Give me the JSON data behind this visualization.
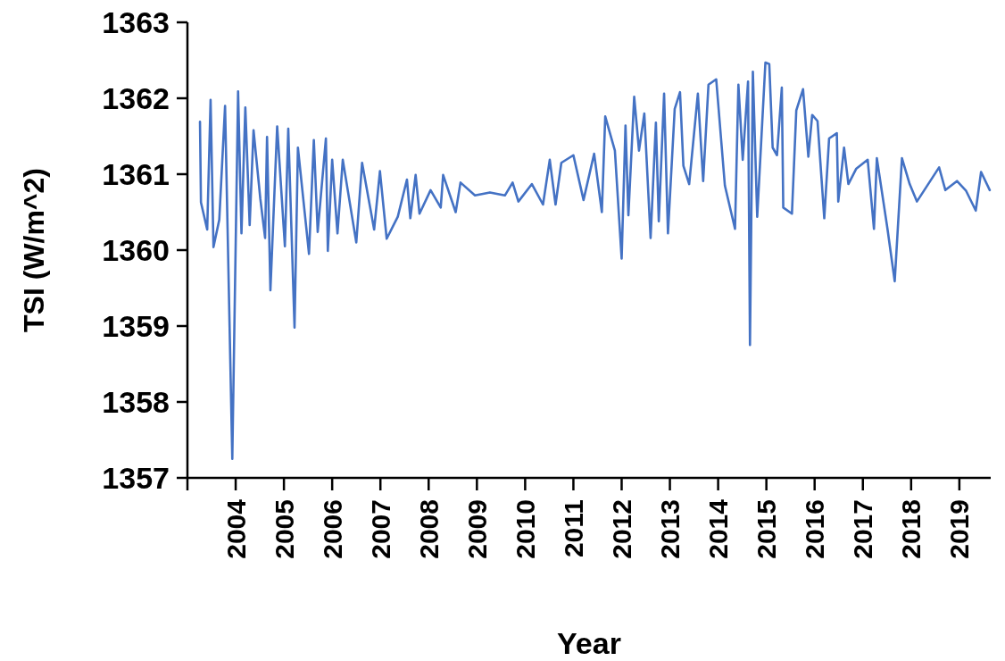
{
  "chart_data": {
    "type": "line",
    "xlabel": "Year",
    "ylabel": "TSI (W/m^2)",
    "xlim": [
      2003,
      2019.65
    ],
    "ylim": [
      1357,
      1363
    ],
    "xticks": [
      {
        "value": 2003,
        "label": null
      },
      2004,
      2005,
      2006,
      2007,
      2008,
      2009,
      2010,
      2011,
      2012,
      2013,
      2014,
      2015,
      2016,
      2017,
      2018,
      2019
    ],
    "yticks": [
      1357,
      1358,
      1359,
      1360,
      1361,
      1362,
      1363
    ],
    "series": [
      {
        "color": "#4472c4",
        "x": [
          2003.26,
          2003.28,
          2003.41,
          2003.48,
          2003.54,
          2003.66,
          2003.78,
          2003.93,
          2004.05,
          2004.12,
          2004.2,
          2004.29,
          2004.37,
          2004.51,
          2004.61,
          2004.65,
          2004.72,
          2004.86,
          2005.02,
          2005.09,
          2005.22,
          2005.29,
          2005.52,
          2005.62,
          2005.7,
          2005.87,
          2005.91,
          2006.0,
          2006.11,
          2006.22,
          2006.5,
          2006.62,
          2006.87,
          2006.99,
          2007.13,
          2007.36,
          2007.55,
          2007.62,
          2007.73,
          2007.81,
          2008.04,
          2008.25,
          2008.3,
          2008.56,
          2008.66,
          2008.96,
          2009.27,
          2009.58,
          2009.74,
          2009.86,
          2010.14,
          2010.37,
          2010.51,
          2010.63,
          2010.75,
          2011.0,
          2011.21,
          2011.43,
          2011.59,
          2011.66,
          2011.86,
          2012.0,
          2012.08,
          2012.14,
          2012.26,
          2012.36,
          2012.47,
          2012.6,
          2012.71,
          2012.77,
          2012.88,
          2012.96,
          2013.1,
          2013.21,
          2013.28,
          2013.4,
          2013.58,
          2013.69,
          2013.8,
          2013.96,
          2014.14,
          2014.35,
          2014.42,
          2014.51,
          2014.62,
          2014.66,
          2014.72,
          2014.81,
          2014.98,
          2015.06,
          2015.13,
          2015.22,
          2015.32,
          2015.35,
          2015.53,
          2015.62,
          2015.76,
          2015.87,
          2015.95,
          2016.06,
          2016.2,
          2016.3,
          2016.46,
          2016.49,
          2016.61,
          2016.7,
          2016.86,
          2017.1,
          2017.23,
          2017.29,
          2017.51,
          2017.66,
          2017.81,
          2017.97,
          2018.12,
          2018.58,
          2018.71,
          2018.95,
          2019.14,
          2019.34,
          2019.45,
          2019.63
        ],
        "values": [
          1361.69,
          1360.63,
          1360.27,
          1361.98,
          1360.04,
          1360.4,
          1361.9,
          1357.25,
          1362.09,
          1360.22,
          1361.88,
          1360.33,
          1361.58,
          1360.68,
          1360.16,
          1361.49,
          1359.47,
          1361.63,
          1360.05,
          1361.6,
          1358.98,
          1361.35,
          1359.95,
          1361.45,
          1360.24,
          1361.47,
          1359.99,
          1361.19,
          1360.22,
          1361.19,
          1360.1,
          1361.15,
          1360.27,
          1361.04,
          1360.15,
          1360.44,
          1360.93,
          1360.42,
          1360.99,
          1360.48,
          1360.79,
          1360.56,
          1360.99,
          1360.5,
          1360.89,
          1360.72,
          1360.76,
          1360.72,
          1360.89,
          1360.64,
          1360.87,
          1360.6,
          1361.19,
          1360.6,
          1361.15,
          1361.25,
          1360.66,
          1361.27,
          1360.5,
          1361.76,
          1361.31,
          1359.89,
          1361.64,
          1360.46,
          1362.02,
          1361.31,
          1361.8,
          1360.16,
          1361.68,
          1360.38,
          1362.06,
          1360.22,
          1361.86,
          1362.08,
          1361.11,
          1360.87,
          1362.06,
          1360.91,
          1362.18,
          1362.25,
          1360.85,
          1360.28,
          1362.18,
          1361.19,
          1362.22,
          1358.75,
          1362.35,
          1360.44,
          1362.47,
          1362.45,
          1361.35,
          1361.25,
          1362.14,
          1360.56,
          1360.48,
          1361.84,
          1362.12,
          1361.23,
          1361.78,
          1361.7,
          1360.42,
          1361.47,
          1361.54,
          1360.64,
          1361.35,
          1360.87,
          1361.07,
          1361.19,
          1360.28,
          1361.21,
          1360.28,
          1359.59,
          1361.21,
          1360.87,
          1360.64,
          1361.09,
          1360.79,
          1360.91,
          1360.78,
          1360.52,
          1361.03,
          1360.79
        ]
      }
    ]
  }
}
